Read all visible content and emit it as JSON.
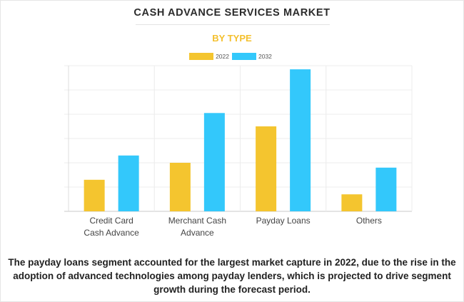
{
  "title": "CASH ADVANCE SERVICES MARKET",
  "subtitle": "BY TYPE",
  "caption": "The payday loans segment accounted for the largest market capture in 2022, due to the rise in the adoption of advanced technologies among payday lenders, which is projected to drive segment growth during the forecast period.",
  "colors": {
    "2022": "#f4c52f",
    "2032": "#33c8fb"
  },
  "chart_data": {
    "type": "bar",
    "categories": [
      [
        "Credit Card",
        "Cash Advance"
      ],
      [
        "Merchant Cash",
        "Advance"
      ],
      [
        "Payday Loans"
      ],
      [
        "Others"
      ]
    ],
    "series": [
      {
        "name": "2022",
        "values": [
          1.3,
          2.0,
          3.5,
          0.7
        ]
      },
      {
        "name": "2032",
        "values": [
          2.3,
          4.05,
          5.85,
          1.8
        ]
      }
    ],
    "ylim": [
      0,
      6
    ],
    "grid": true,
    "legend": "top-center"
  }
}
